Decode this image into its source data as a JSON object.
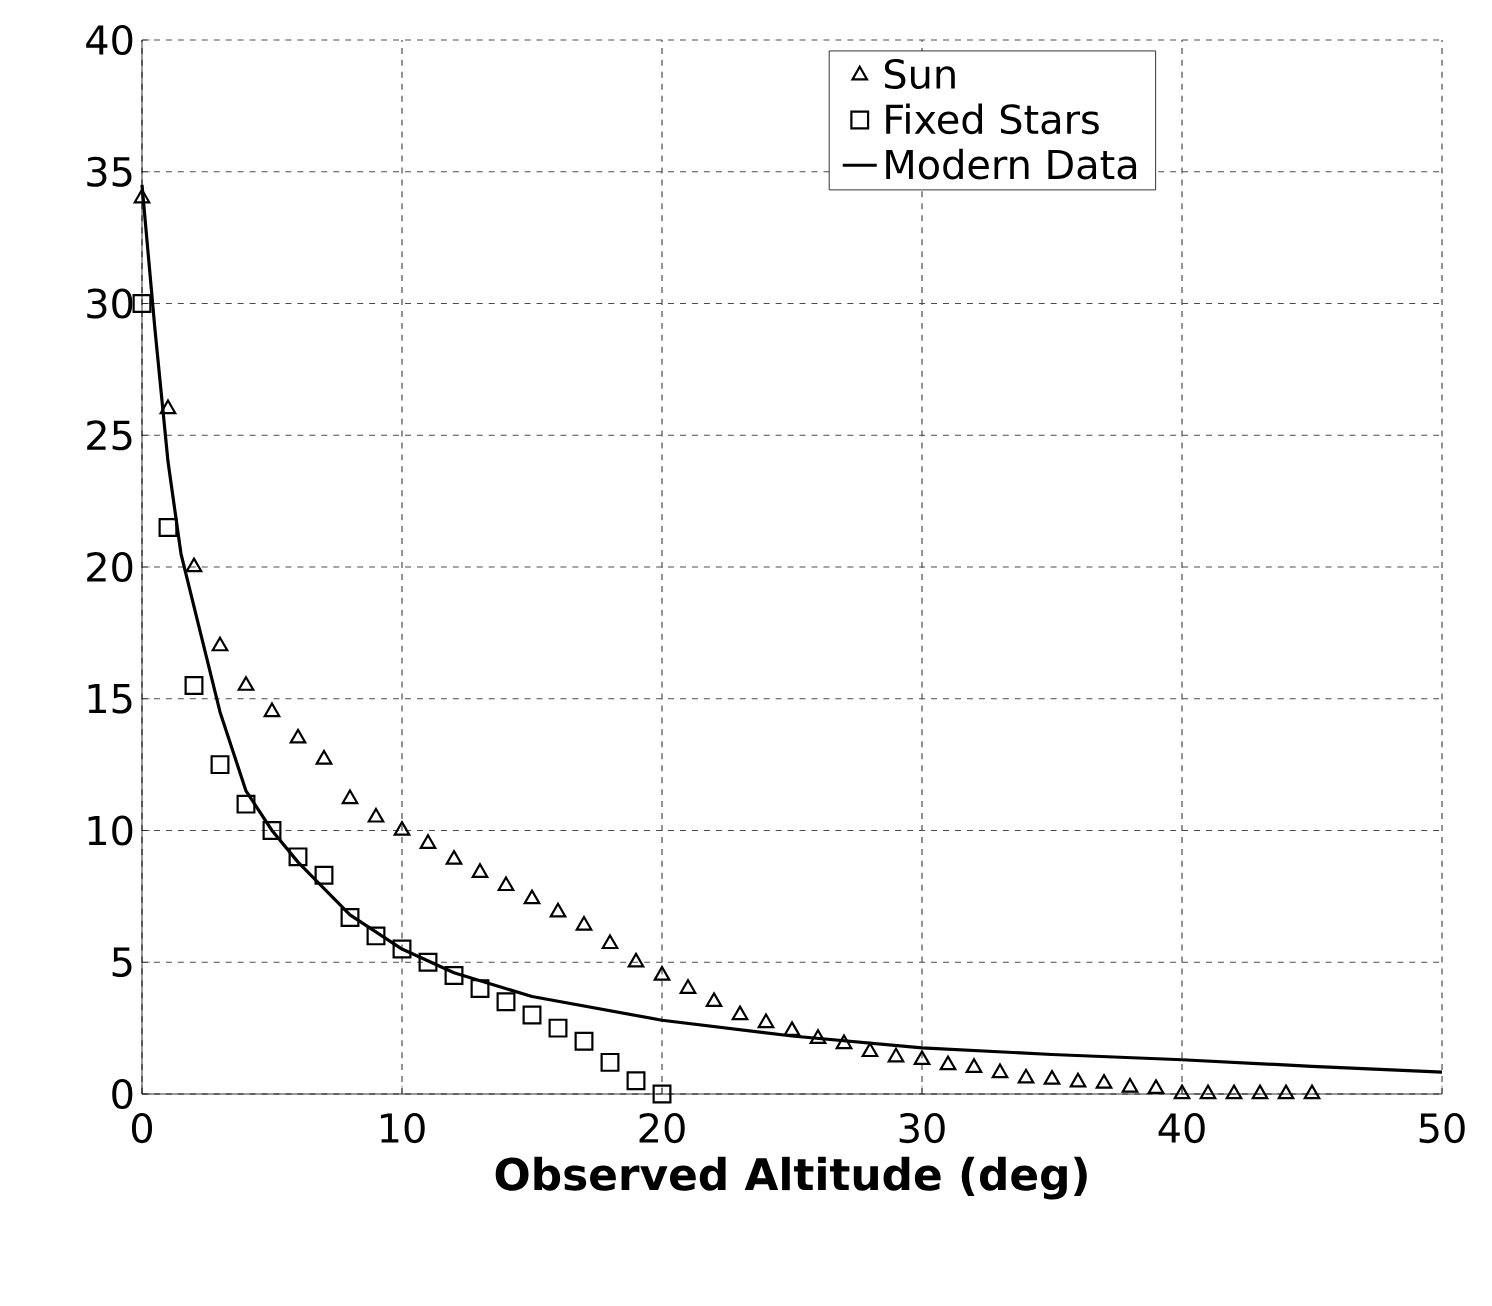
{
  "chart_data": {
    "type": "scatter",
    "xlabel": "Observed Altitude (deg)",
    "xlim": [
      0,
      50
    ],
    "ylim": [
      0,
      40
    ],
    "xticks": [
      0,
      10,
      20,
      30,
      40,
      50
    ],
    "yticks": [
      0,
      5,
      10,
      15,
      20,
      25,
      30,
      35,
      40
    ],
    "grid": true,
    "legend": "top right",
    "line_style": "solid",
    "series": [
      {
        "name": "Sun",
        "type": "scatter",
        "marker": "triangle",
        "color": "#000000",
        "x": [
          0,
          1,
          2,
          3,
          4,
          5,
          6,
          7,
          8,
          9,
          10,
          11,
          12,
          13,
          14,
          15,
          16,
          17,
          18,
          19,
          20,
          21,
          22,
          23,
          24,
          25,
          26,
          27,
          28,
          29,
          30,
          31,
          32,
          33,
          34,
          35,
          36,
          37,
          38,
          39,
          40,
          41,
          42,
          43,
          44,
          45
        ],
        "values": [
          34,
          26,
          20,
          17,
          15.5,
          14.5,
          13.5,
          12.7,
          11.2,
          10.5,
          10,
          9.5,
          8.9,
          8.4,
          7.9,
          7.4,
          6.9,
          6.4,
          5.7,
          5,
          4.5,
          4,
          3.5,
          3,
          2.7,
          2.4,
          2.1,
          1.9,
          1.6,
          1.4,
          1.3,
          1.1,
          1,
          0.8,
          0.6,
          0.55,
          0.45,
          0.4,
          0.25,
          0.2,
          0,
          0,
          0,
          0,
          0,
          0
        ]
      },
      {
        "name": "Fixed Stars",
        "type": "scatter",
        "marker": "square",
        "color": "#000000",
        "x": [
          0,
          1,
          2,
          3,
          4,
          5,
          6,
          7,
          8,
          9,
          10,
          11,
          12,
          13,
          14,
          15,
          16,
          17,
          18,
          19,
          20
        ],
        "values": [
          30,
          21.5,
          15.5,
          12.5,
          11,
          10,
          9,
          8.3,
          6.7,
          6,
          5.5,
          5,
          4.5,
          4,
          3.5,
          3,
          2.5,
          2,
          1.2,
          0.5,
          0
        ]
      },
      {
        "name": "Modern Data",
        "type": "line",
        "marker": "none",
        "color": "#000000",
        "x": [
          0,
          0.5,
          1,
          1.5,
          2,
          3,
          4,
          5,
          6,
          8,
          10,
          12,
          15,
          20,
          25,
          30,
          35,
          40,
          45,
          50
        ],
        "values": [
          34.5,
          29,
          24,
          20.5,
          18.5,
          14.5,
          11.5,
          10,
          8.8,
          6.8,
          5.5,
          4.6,
          3.7,
          2.8,
          2.2,
          1.75,
          1.5,
          1.3,
          1.05,
          0.83
        ]
      }
    ]
  }
}
